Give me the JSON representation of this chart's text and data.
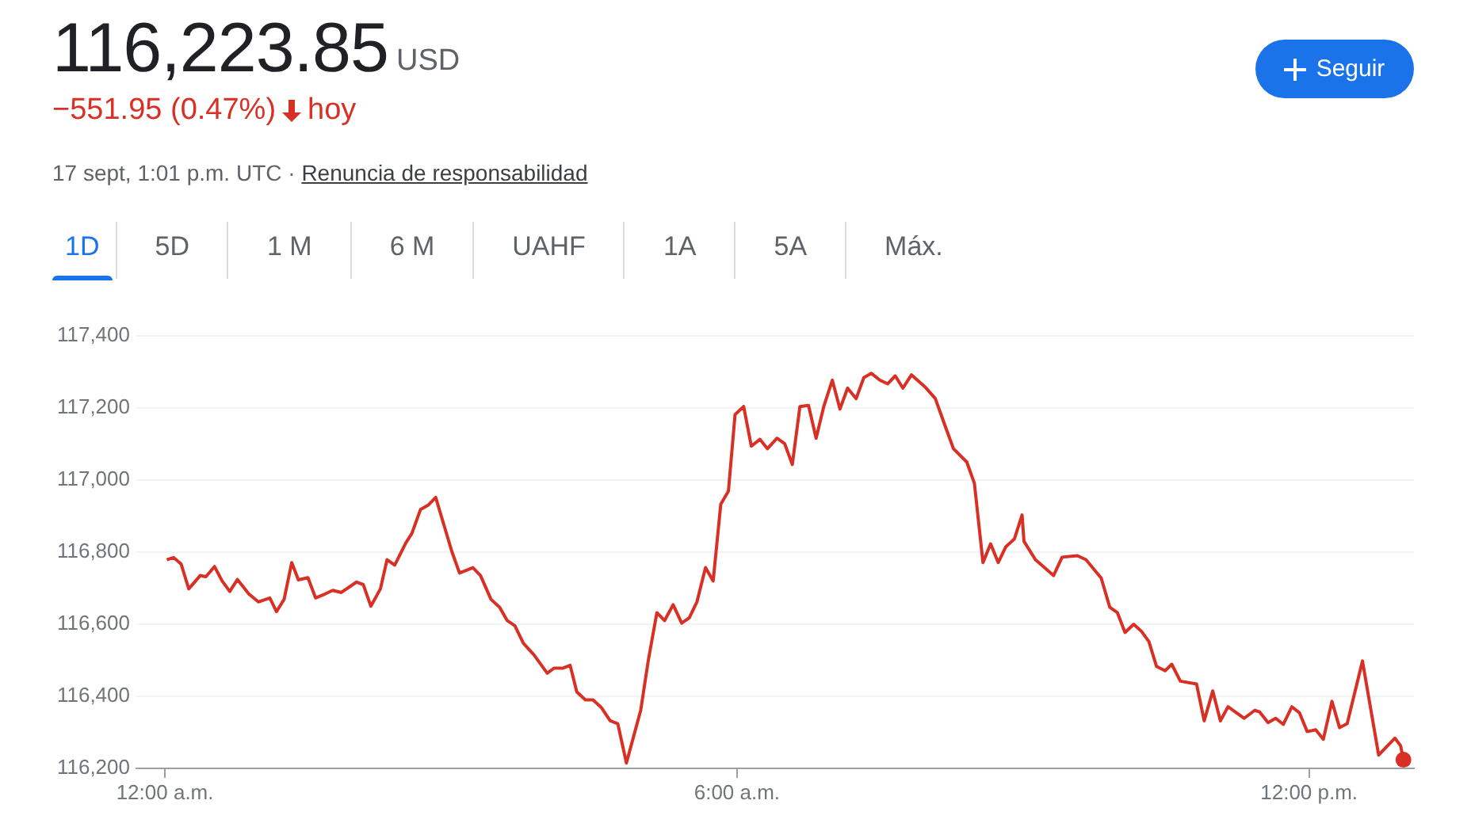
{
  "chart_data": {
    "type": "line",
    "title": "116,223.85",
    "subtitle": "−551.95 (0.47%)",
    "annotations": [
      "USD",
      "hoy",
      "17 sept, 1:01 p.m. UTC ·",
      "Renuncia de responsabilidad",
      "Seguir",
      "1D",
      "5D",
      "1 M",
      "6 M",
      "UAHF",
      "1A",
      "5A",
      "Máx."
    ],
    "series": [
      {
        "color": "#d93025",
        "x": [
          0.02,
          0.09,
          0.17,
          0.25,
          0.37,
          0.43,
          0.52,
          0.6,
          0.68,
          0.76,
          0.88,
          0.98,
          1.1,
          1.17,
          1.25,
          1.33,
          1.4,
          1.5,
          1.58,
          1.68,
          1.76,
          1.85,
          2.01,
          2.08,
          2.16,
          2.26,
          2.33,
          2.41,
          2.53,
          2.59,
          2.68,
          2.76,
          2.84,
          3.01,
          3.09,
          3.23,
          3.31,
          3.42,
          3.51,
          3.59,
          3.67,
          3.76,
          3.87,
          4.01,
          4.08,
          4.17,
          4.25,
          4.32,
          4.41,
          4.49,
          4.58,
          4.67,
          4.75,
          4.84,
          4.99,
          5.07,
          5.16,
          5.24,
          5.33,
          5.42,
          5.5,
          5.58,
          5.67,
          5.75,
          5.83,
          5.91,
          5.98,
          6.07,
          6.15,
          6.24,
          6.32,
          6.42,
          6.5,
          6.58,
          6.66,
          6.75,
          6.83,
          6.91,
          7.0,
          7.08,
          7.16,
          7.25,
          7.33,
          7.41,
          7.5,
          7.58,
          7.66,
          7.74,
          7.83,
          7.97,
          8.08,
          8.19,
          8.27,
          8.41,
          8.49,
          8.58,
          8.66,
          8.74,
          8.82,
          8.91,
          8.99,
          9.01,
          9.13,
          9.32,
          9.41,
          9.57,
          9.66,
          9.82,
          9.91,
          9.99,
          10.07,
          10.16,
          10.24,
          10.32,
          10.4,
          10.49,
          10.56,
          10.65,
          10.82,
          10.9,
          10.99,
          11.07,
          11.15,
          11.32,
          11.43,
          11.48,
          11.57,
          11.65,
          11.73,
          11.82,
          11.9,
          11.98,
          12.07,
          12.15,
          12.24,
          12.32,
          12.4,
          12.56,
          12.73,
          12.9,
          12.96,
          12.99
        ],
        "values": [
          116779,
          116785,
          116767,
          116698,
          116735,
          116732,
          116760,
          116720,
          116691,
          116724,
          116684,
          116662,
          116673,
          116635,
          116669,
          116771,
          116723,
          116729,
          116673,
          116684,
          116694,
          116688,
          116717,
          116710,
          116650,
          116698,
          116779,
          116764,
          116827,
          116852,
          116918,
          116930,
          116952,
          116801,
          116742,
          116757,
          116735,
          116669,
          116647,
          116610,
          116596,
          116547,
          116515,
          116464,
          116478,
          116478,
          116486,
          116412,
          116390,
          116390,
          116368,
          116332,
          116324,
          116215,
          116361,
          116500,
          116632,
          116610,
          116654,
          116603,
          116618,
          116662,
          116757,
          116720,
          116933,
          116969,
          117182,
          117204,
          117094,
          117113,
          117087,
          117116,
          117101,
          117043,
          117204,
          117207,
          117116,
          117204,
          117277,
          117197,
          117255,
          117226,
          117284,
          117296,
          117277,
          117267,
          117289,
          117255,
          117292,
          117259,
          117226,
          117145,
          117087,
          117050,
          116991,
          116771,
          116823,
          116771,
          116815,
          116837,
          116903,
          116830,
          116779,
          116735,
          116786,
          116790,
          116779,
          116728,
          116647,
          116632,
          116577,
          116600,
          116581,
          116552,
          116483,
          116471,
          116489,
          116442,
          116434,
          116332,
          116415,
          116332,
          116371,
          116339,
          116361,
          116357,
          116327,
          116339,
          116322,
          116371,
          116354,
          116302,
          116307,
          116281,
          116386,
          116313,
          116324,
          116498,
          116237,
          116284,
          116263,
          116224
        ]
      },
      {
        "type": "scatter",
        "color": "#d93025",
        "marker": "circle",
        "x": [
          12.99
        ],
        "values": [
          116224
        ]
      }
    ],
    "xlim": [
      -0.3,
      13.1
    ],
    "xticks": [
      {
        "value": 0,
        "label": "12:00 a.m."
      },
      {
        "value": 6,
        "label": "6:00 a.m."
      },
      {
        "value": 12,
        "label": "12:00 p.m."
      }
    ],
    "ylim": [
      116200,
      117400
    ],
    "yticks": [
      {
        "value": 116200,
        "label": "116,200"
      },
      {
        "value": 116400,
        "label": "116,400"
      },
      {
        "value": 116600,
        "label": "116,600"
      },
      {
        "value": 116800,
        "label": "116,800"
      },
      {
        "value": 117000,
        "label": "117,000"
      },
      {
        "value": 117200,
        "label": "117,200"
      },
      {
        "value": 117400,
        "label": "117,400"
      }
    ],
    "grid": "y",
    "legend": false,
    "marker": "none",
    "line_style": "solid"
  }
}
